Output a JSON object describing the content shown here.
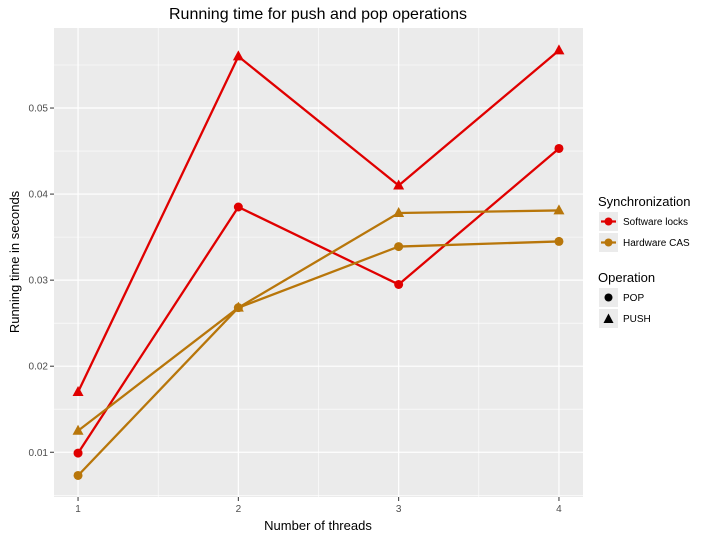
{
  "chart_data": {
    "type": "line",
    "title": "Running time for push and pop operations",
    "xlabel": "Number of threads",
    "ylabel": "Running time in seconds",
    "x": [
      1,
      2,
      3,
      4
    ],
    "x_ticks": [
      "1",
      "2",
      "3",
      "4"
    ],
    "y_ticks": [
      "0.01",
      "0.02",
      "0.03",
      "0.04",
      "0.05"
    ],
    "ylim": [
      0.0048,
      0.0593
    ],
    "xlim": [
      0.85,
      4.15
    ],
    "grid": true,
    "legend_placement": "right",
    "colors": {
      "panel": "#ebebeb",
      "grid": "#ffffff",
      "software": "#e00000",
      "hardware": "#b8760a"
    },
    "series": [
      {
        "synchronization": "Software locks",
        "operation": "PUSH",
        "values": [
          0.017,
          0.056,
          0.041,
          0.0567
        ]
      },
      {
        "synchronization": "Software locks",
        "operation": "POP",
        "values": [
          0.0099,
          0.0385,
          0.0295,
          0.0453
        ]
      },
      {
        "synchronization": "Hardware CAS",
        "operation": "PUSH",
        "values": [
          0.0125,
          0.0268,
          0.0378,
          0.0381
        ]
      },
      {
        "synchronization": "Hardware CAS",
        "operation": "POP",
        "values": [
          0.0073,
          0.0268,
          0.0339,
          0.0345
        ]
      }
    ],
    "legend": {
      "synchronization_title": "Synchronization",
      "synchronization_items": [
        "Software locks",
        "Hardware CAS"
      ],
      "operation_title": "Operation",
      "operation_items": [
        "POP",
        "PUSH"
      ]
    }
  }
}
